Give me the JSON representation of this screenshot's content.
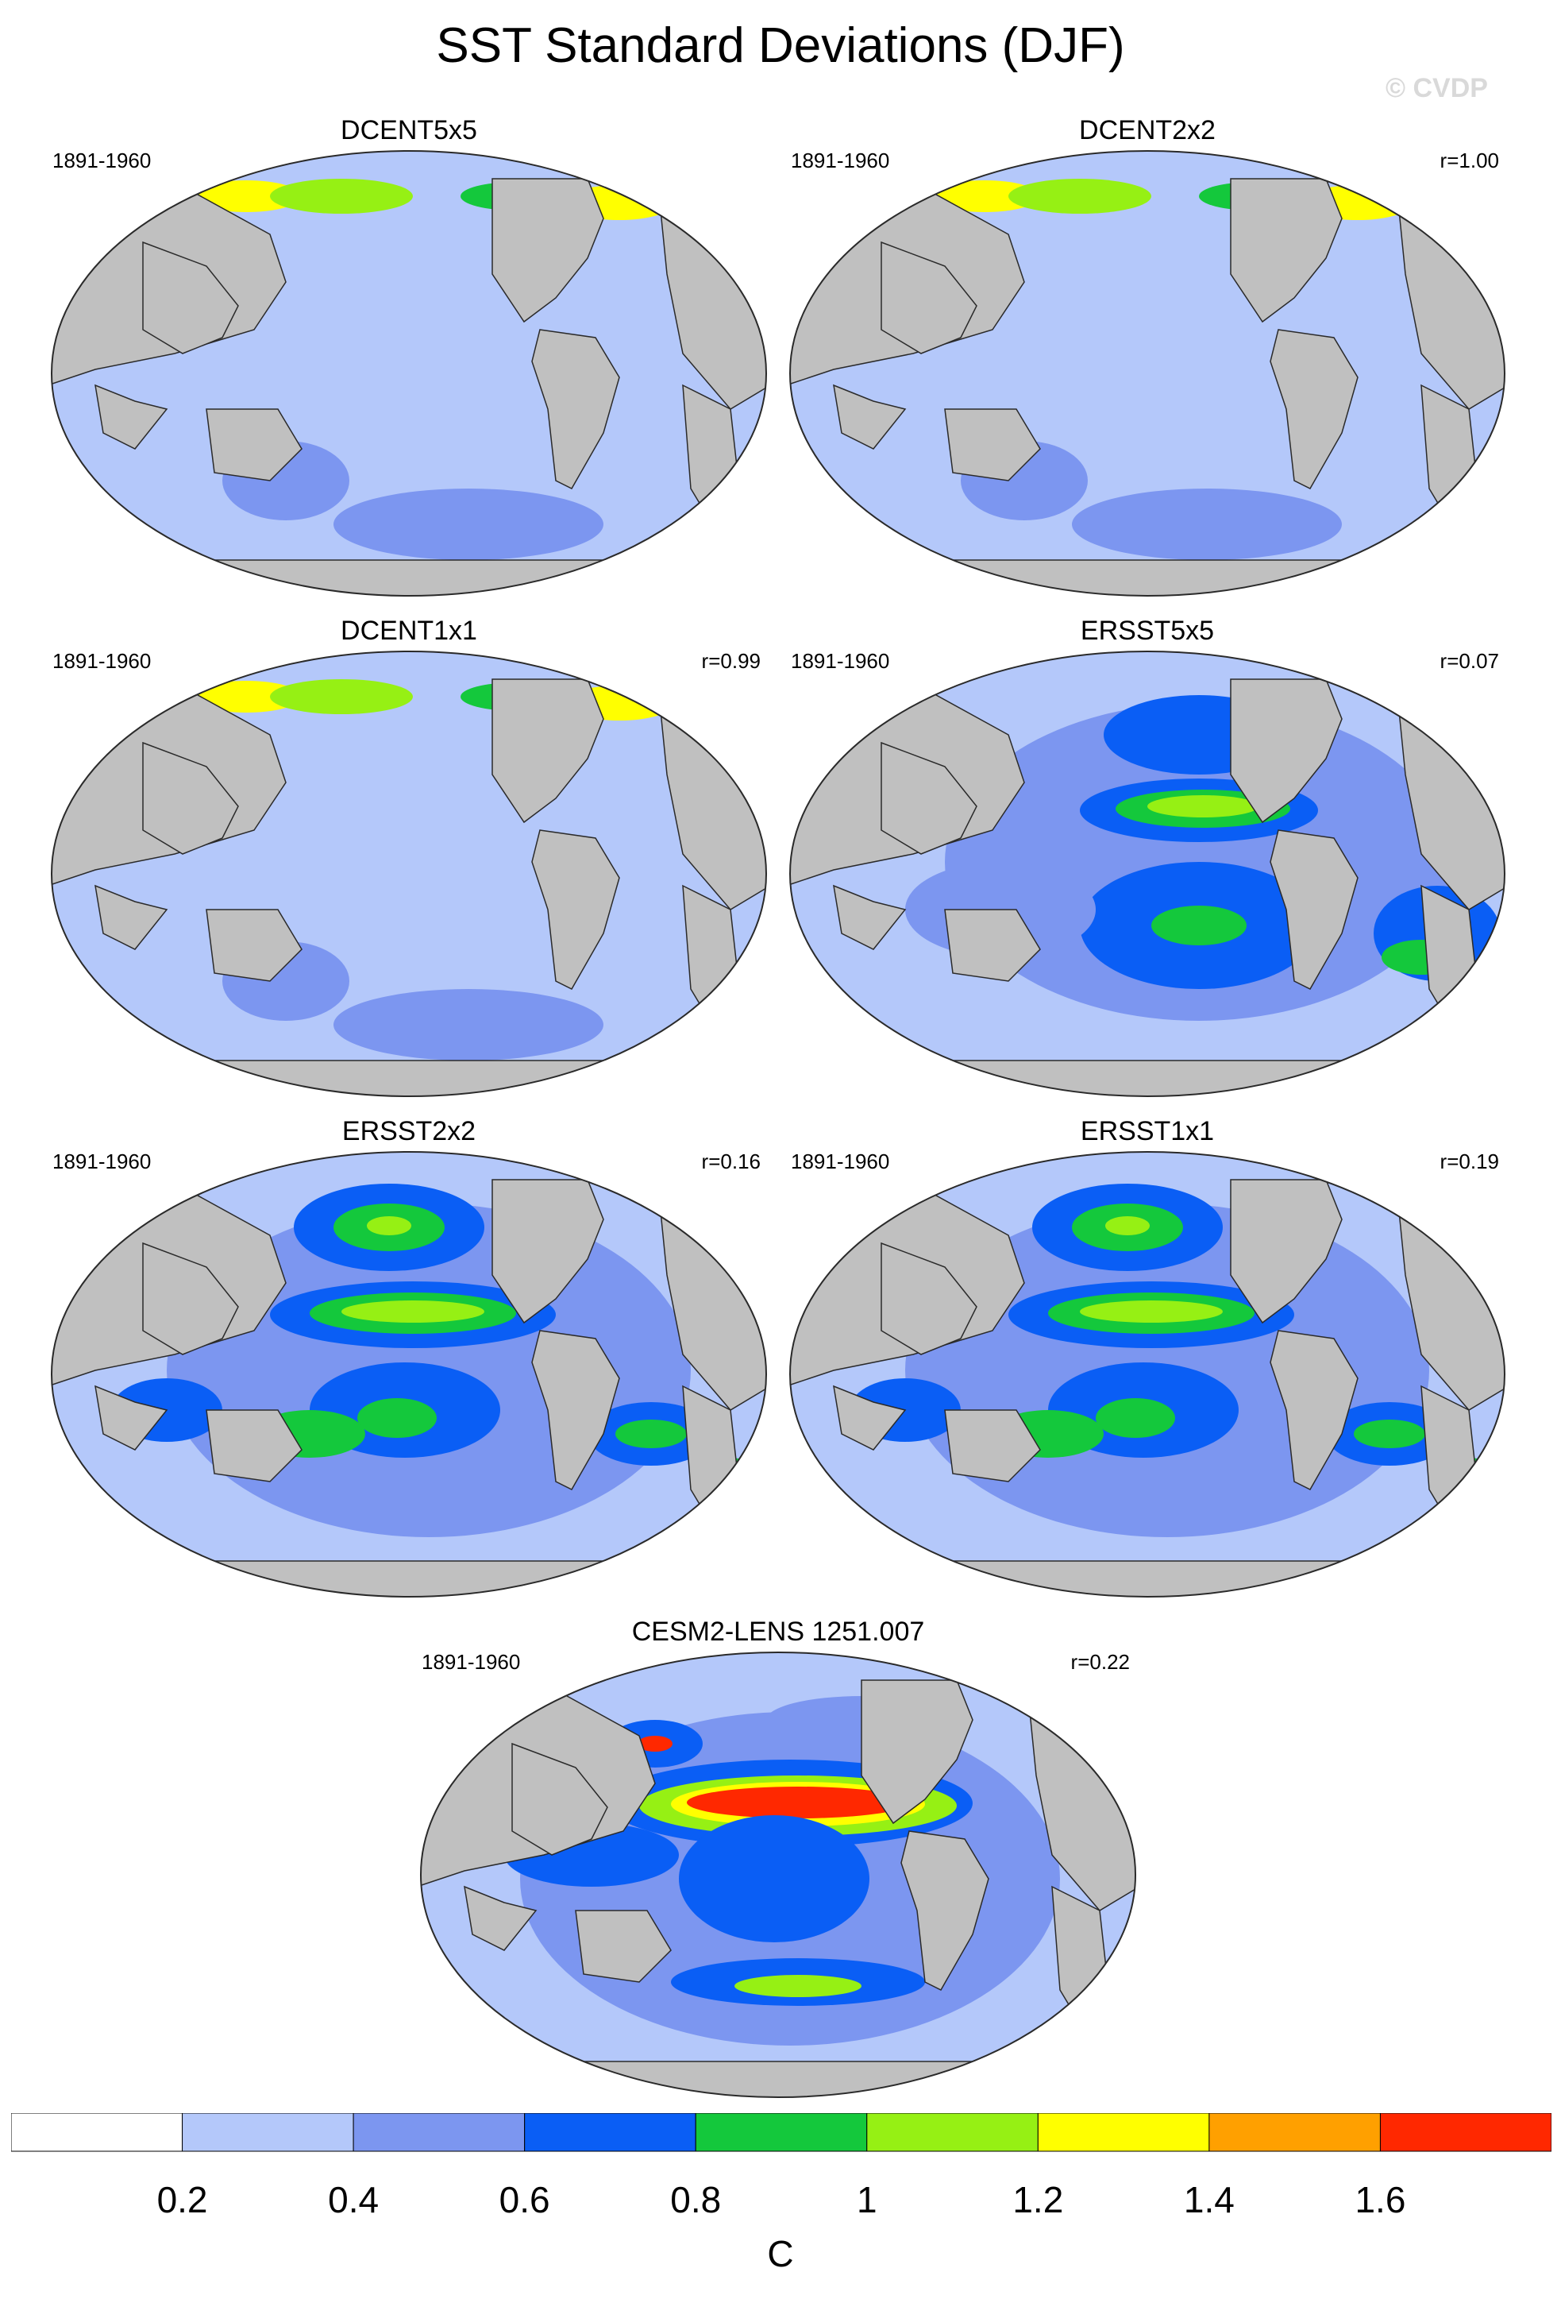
{
  "title": "SST Standard Deviations (DJF)",
  "watermark": "© CVDP",
  "panels": [
    {
      "title": "DCENT5x5",
      "period": "1891-1960",
      "corr": ""
    },
    {
      "title": "DCENT2x2",
      "period": "1891-1960",
      "corr": "r=1.00"
    },
    {
      "title": "DCENT1x1",
      "period": "1891-1960",
      "corr": "r=0.99"
    },
    {
      "title": "ERSST5x5",
      "period": "1891-1960",
      "corr": "r=0.07"
    },
    {
      "title": "ERSST2x2",
      "period": "1891-1960",
      "corr": "r=0.16"
    },
    {
      "title": "ERSST1x1",
      "period": "1891-1960",
      "corr": "r=0.19"
    },
    {
      "title": "CESM2-LENS 1251.007",
      "period": "1891-1960",
      "corr": "r=0.22"
    }
  ],
  "colorbar": {
    "unit": "C",
    "tick_labels": [
      "0.2",
      "0.4",
      "0.6",
      "0.8",
      "1",
      "1.2",
      "1.4",
      "1.6"
    ],
    "colors": [
      "#ffffff",
      "#b4c8fa",
      "#7c96f0",
      "#0a5ef5",
      "#14c83c",
      "#96f014",
      "#ffff00",
      "#ffa000",
      "#ff2800"
    ]
  },
  "map_colors": {
    "land": "#c0c0c0",
    "outline": "#2a2a2a"
  }
}
